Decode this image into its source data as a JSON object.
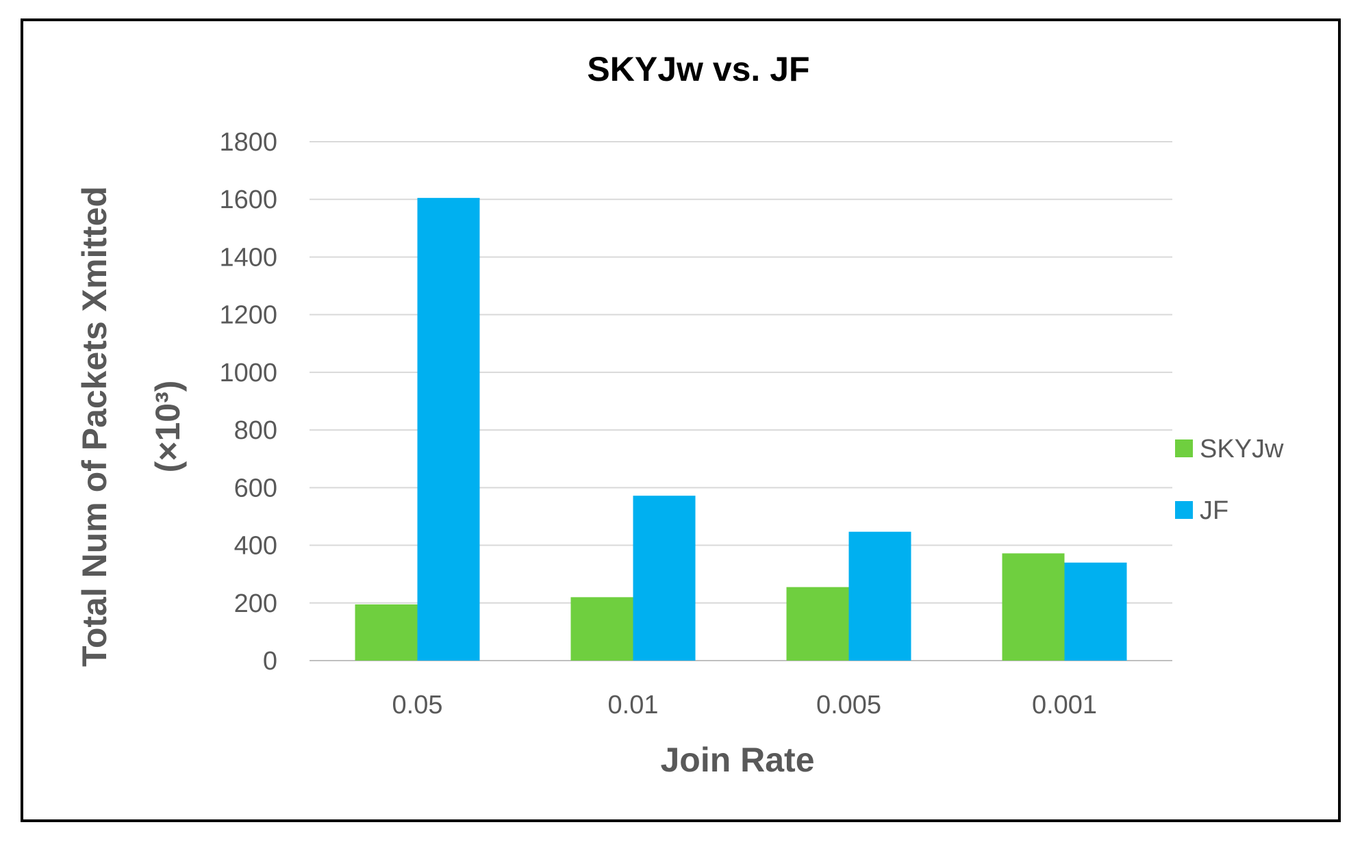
{
  "chart_data": {
    "type": "bar",
    "title": "SKYJw vs. JF",
    "xlabel": "Join Rate",
    "ylabel_line1": "Total Num of Packets Xmitted",
    "ylabel_line2": "(×10³)",
    "categories": [
      "0.05",
      "0.01",
      "0.005",
      "0.001"
    ],
    "series": [
      {
        "name": "SKYJw",
        "color": "#6fcf3f",
        "values": [
          195,
          220,
          255,
          372
        ]
      },
      {
        "name": "JF",
        "color": "#00b0f0",
        "values": [
          1605,
          572,
          447,
          340
        ]
      }
    ],
    "ylim": [
      0,
      1800
    ],
    "yticks": [
      0,
      200,
      400,
      600,
      800,
      1000,
      1200,
      1400,
      1600,
      1800
    ],
    "grid": true,
    "legend_position": "right"
  }
}
